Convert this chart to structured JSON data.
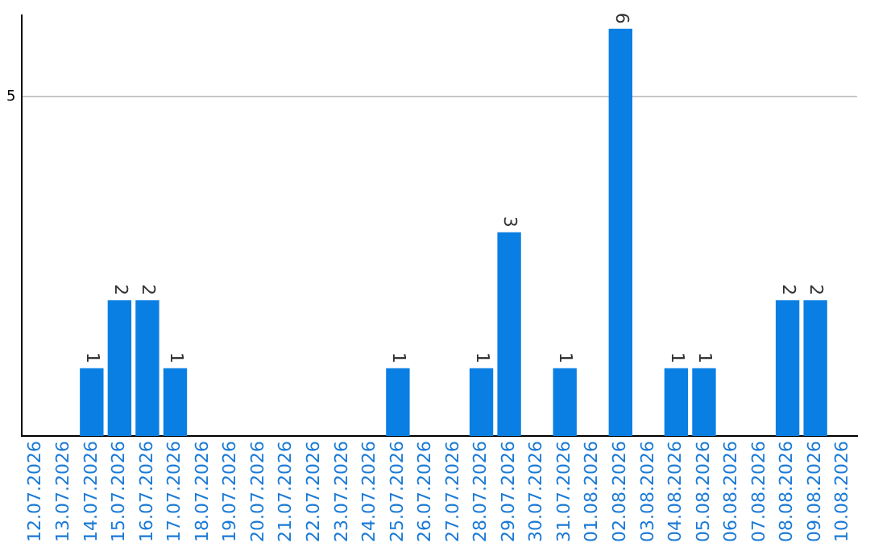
{
  "chart_data": {
    "type": "bar",
    "categories": [
      "12.07.2026",
      "13.07.2026",
      "14.07.2026",
      "15.07.2026",
      "16.07.2026",
      "17.07.2026",
      "18.07.2026",
      "19.07.2026",
      "20.07.2026",
      "21.07.2026",
      "22.07.2026",
      "23.07.2026",
      "24.07.2026",
      "25.07.2026",
      "26.07.2026",
      "27.07.2026",
      "28.07.2026",
      "29.07.2026",
      "30.07.2026",
      "31.07.2026",
      "01.08.2026",
      "02.08.2026",
      "03.08.2026",
      "04.08.2026",
      "05.08.2026",
      "06.08.2026",
      "07.08.2026",
      "08.08.2026",
      "09.08.2026",
      "10.08.2026"
    ],
    "values": [
      0,
      0,
      1,
      2,
      2,
      1,
      0,
      0,
      0,
      0,
      0,
      0,
      0,
      1,
      0,
      0,
      1,
      3,
      0,
      1,
      0,
      6,
      0,
      1,
      1,
      0,
      0,
      2,
      2,
      0
    ],
    "value_labels": [
      null,
      null,
      "1",
      "2",
      "2",
      "1",
      null,
      null,
      null,
      null,
      null,
      null,
      null,
      "1",
      null,
      null,
      "1",
      "3",
      null,
      "1",
      null,
      "6",
      null,
      "1",
      "1",
      null,
      null,
      "2",
      "2",
      null
    ],
    "color": "#0a7fe3",
    "ylim": [
      0,
      6.2
    ],
    "yticks": [
      5
    ],
    "grid": "y",
    "legend": false
  }
}
